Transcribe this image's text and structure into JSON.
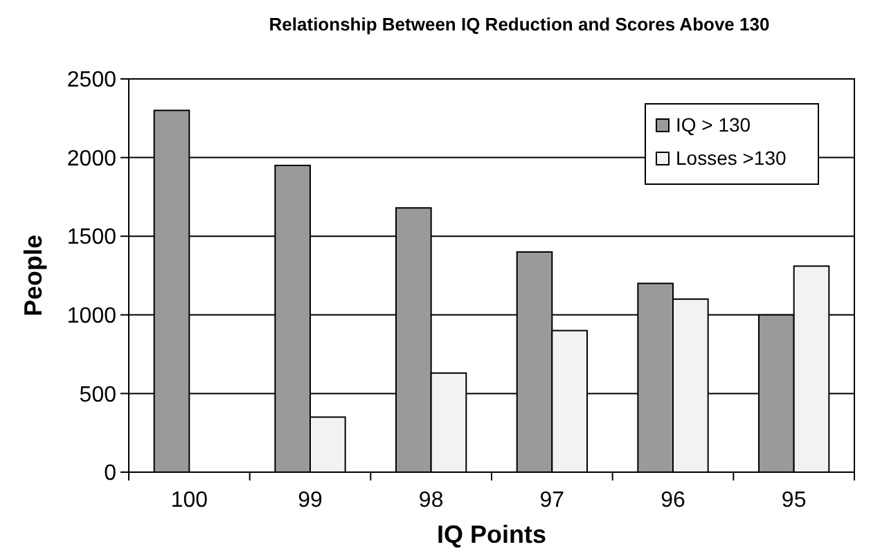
{
  "chart_data": {
    "type": "bar",
    "title": "Relationship Between IQ Reduction and Scores Above 130",
    "xlabel": "IQ Points",
    "ylabel": "People",
    "categories": [
      "100",
      "99",
      "98",
      "97",
      "96",
      "95"
    ],
    "series": [
      {
        "name": "IQ > 130",
        "color": "#9a9a9a",
        "values": [
          2300,
          1950,
          1680,
          1400,
          1200,
          1000
        ]
      },
      {
        "name": "Losses >130",
        "color": "#f2f2f2",
        "values": [
          0,
          350,
          630,
          900,
          1100,
          1310
        ]
      }
    ],
    "ylim": [
      0,
      2500
    ],
    "yticks": [
      0,
      500,
      1000,
      1500,
      2000,
      2500
    ],
    "grid": "y",
    "legend": "top right"
  }
}
